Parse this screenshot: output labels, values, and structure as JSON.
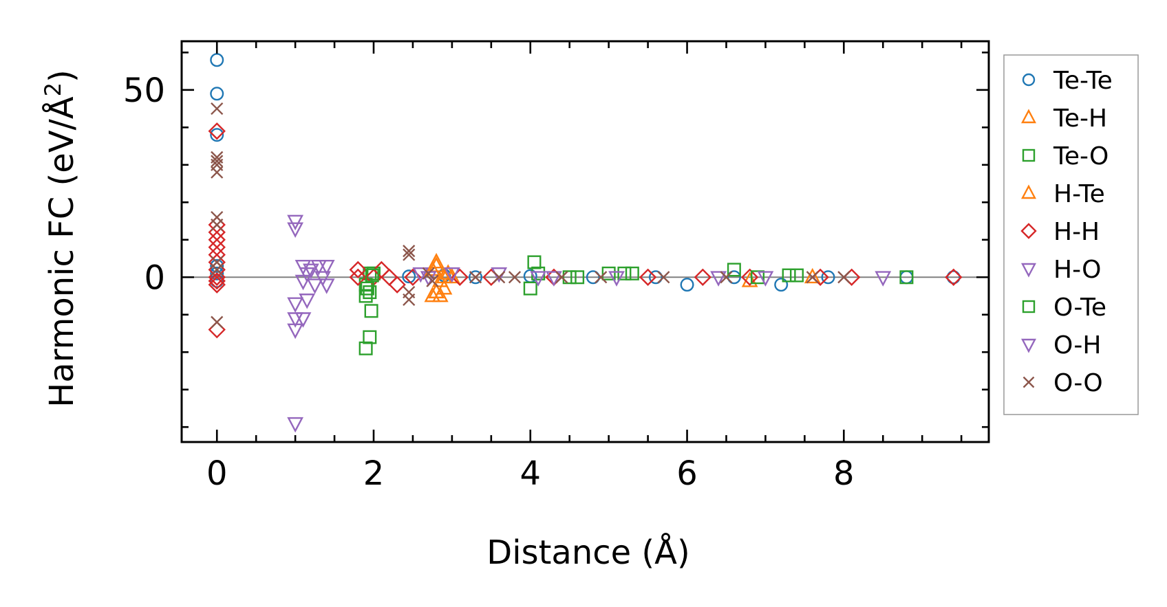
{
  "chart_data": {
    "type": "scatter",
    "xlabel": "Distance (Å)",
    "ylabel_main": "Harmonic FC (eV/Å",
    "ylabel_sup": "2",
    "ylabel_close": ")",
    "xlim": [
      -0.45,
      9.85
    ],
    "ylim": [
      -44,
      63
    ],
    "xticks": [
      0,
      2,
      4,
      6,
      8
    ],
    "xtick_labels": [
      "0",
      "2",
      "4",
      "6",
      "8"
    ],
    "xminor_step": 0.5,
    "yticks": [
      0,
      50
    ],
    "ytick_labels": [
      "0",
      "50"
    ],
    "yminor_step": 10,
    "zero_line": true,
    "grid": false,
    "legend_placement": "outside-right",
    "series": [
      {
        "name": "Te-Te",
        "marker": "circle",
        "color": "#1f77b4",
        "points": [
          [
            0,
            58
          ],
          [
            0,
            49
          ],
          [
            0,
            38
          ],
          [
            0,
            3
          ],
          [
            0,
            1
          ],
          [
            0,
            -1
          ],
          [
            2.45,
            0.2
          ],
          [
            2.9,
            0.5
          ],
          [
            3.3,
            0
          ],
          [
            4.0,
            0.3
          ],
          [
            4.8,
            0
          ],
          [
            5.6,
            0
          ],
          [
            6.0,
            -2
          ],
          [
            6.6,
            0
          ],
          [
            7.2,
            -2
          ],
          [
            7.8,
            0
          ],
          [
            8.8,
            0
          ],
          [
            9.4,
            0
          ]
        ]
      },
      {
        "name": "Te-H",
        "marker": "triangle-up",
        "color": "#ff7f0e",
        "points": [
          [
            2.8,
            4
          ],
          [
            2.75,
            2
          ],
          [
            2.85,
            -1
          ],
          [
            2.8,
            -4
          ],
          [
            2.9,
            -3
          ],
          [
            2.95,
            1
          ],
          [
            3.0,
            0
          ]
        ]
      },
      {
        "name": "Te-O",
        "marker": "square",
        "color": "#2ca02c",
        "points": [
          [
            1.95,
            1
          ],
          [
            1.9,
            -2
          ],
          [
            1.95,
            -4
          ],
          [
            1.9,
            -5
          ],
          [
            1.95,
            -16
          ],
          [
            1.9,
            -19
          ],
          [
            1.97,
            -9
          ],
          [
            2.0,
            1
          ],
          [
            4.05,
            4
          ],
          [
            4.0,
            -3
          ],
          [
            4.5,
            0
          ],
          [
            5.0,
            1
          ],
          [
            5.3,
            1
          ],
          [
            6.6,
            2
          ],
          [
            7.4,
            0.5
          ],
          [
            8.8,
            0
          ]
        ]
      },
      {
        "name": "H-Te",
        "marker": "triangle-up",
        "color": "#ff7f0e",
        "points": [
          [
            2.75,
            -5
          ],
          [
            2.85,
            -5
          ],
          [
            2.8,
            3
          ],
          [
            2.9,
            0
          ],
          [
            6.8,
            -1
          ],
          [
            7.6,
            0
          ]
        ]
      },
      {
        "name": "H-H",
        "marker": "diamond",
        "color": "#d62728",
        "points": [
          [
            0,
            39
          ],
          [
            0,
            14
          ],
          [
            0,
            12
          ],
          [
            0,
            10
          ],
          [
            0,
            8
          ],
          [
            0,
            6
          ],
          [
            0,
            4
          ],
          [
            0,
            2
          ],
          [
            0,
            0
          ],
          [
            0,
            -1
          ],
          [
            0,
            -2
          ],
          [
            0,
            -14
          ],
          [
            1.8,
            2
          ],
          [
            1.8,
            0
          ],
          [
            2.0,
            0
          ],
          [
            2.1,
            2
          ],
          [
            2.2,
            0
          ],
          [
            2.3,
            -2
          ],
          [
            2.5,
            0
          ],
          [
            3.1,
            0
          ],
          [
            3.5,
            0
          ],
          [
            4.3,
            0
          ],
          [
            5.5,
            0
          ],
          [
            6.2,
            0
          ],
          [
            6.8,
            0
          ],
          [
            7.7,
            0
          ],
          [
            8.1,
            0
          ],
          [
            9.4,
            0
          ]
        ]
      },
      {
        "name": "H-O",
        "marker": "triangle-down",
        "color": "#9467bd",
        "points": [
          [
            1.0,
            15
          ],
          [
            1.0,
            13
          ],
          [
            1.0,
            -7
          ],
          [
            1.0,
            -11
          ],
          [
            1.0,
            -14
          ],
          [
            1.0,
            -39
          ],
          [
            1.1,
            3
          ],
          [
            1.1,
            -1
          ],
          [
            1.15,
            -6
          ],
          [
            1.1,
            -11
          ],
          [
            1.2,
            2
          ],
          [
            1.25,
            -2
          ],
          [
            1.3,
            3
          ],
          [
            1.35,
            0
          ],
          [
            1.4,
            3
          ],
          [
            1.4,
            -2
          ],
          [
            1.15,
            1
          ]
        ]
      },
      {
        "name": "O-Te",
        "marker": "square",
        "color": "#2ca02c",
        "points": [
          [
            1.92,
            -3
          ],
          [
            1.98,
            0.5
          ],
          [
            4.1,
            1
          ],
          [
            4.6,
            0
          ],
          [
            5.2,
            1
          ],
          [
            6.9,
            0
          ],
          [
            7.3,
            0.5
          ]
        ]
      },
      {
        "name": "O-H",
        "marker": "triangle-down",
        "color": "#9467bd",
        "points": [
          [
            2.6,
            1
          ],
          [
            2.7,
            0
          ],
          [
            3.0,
            1
          ],
          [
            3.6,
            1
          ],
          [
            4.1,
            0
          ],
          [
            4.3,
            0
          ],
          [
            5.1,
            0
          ],
          [
            6.4,
            0
          ],
          [
            7.0,
            0
          ],
          [
            8.5,
            0
          ]
        ]
      },
      {
        "name": "O-O",
        "marker": "cross",
        "color": "#8c564b",
        "points": [
          [
            0,
            45
          ],
          [
            0,
            32
          ],
          [
            0,
            31
          ],
          [
            0,
            30
          ],
          [
            0,
            28
          ],
          [
            0,
            16
          ],
          [
            0,
            14
          ],
          [
            0,
            4
          ],
          [
            0,
            2
          ],
          [
            0,
            -12
          ],
          [
            2.45,
            7
          ],
          [
            2.45,
            6
          ],
          [
            2.45,
            -4
          ],
          [
            2.45,
            -6
          ],
          [
            2.7,
            1
          ],
          [
            2.75,
            -1
          ],
          [
            3.3,
            0
          ],
          [
            3.6,
            0
          ],
          [
            3.8,
            0
          ],
          [
            4.4,
            0
          ],
          [
            4.9,
            0
          ],
          [
            5.7,
            0
          ],
          [
            6.5,
            0
          ],
          [
            7.6,
            0
          ],
          [
            8.0,
            0
          ]
        ]
      }
    ]
  }
}
